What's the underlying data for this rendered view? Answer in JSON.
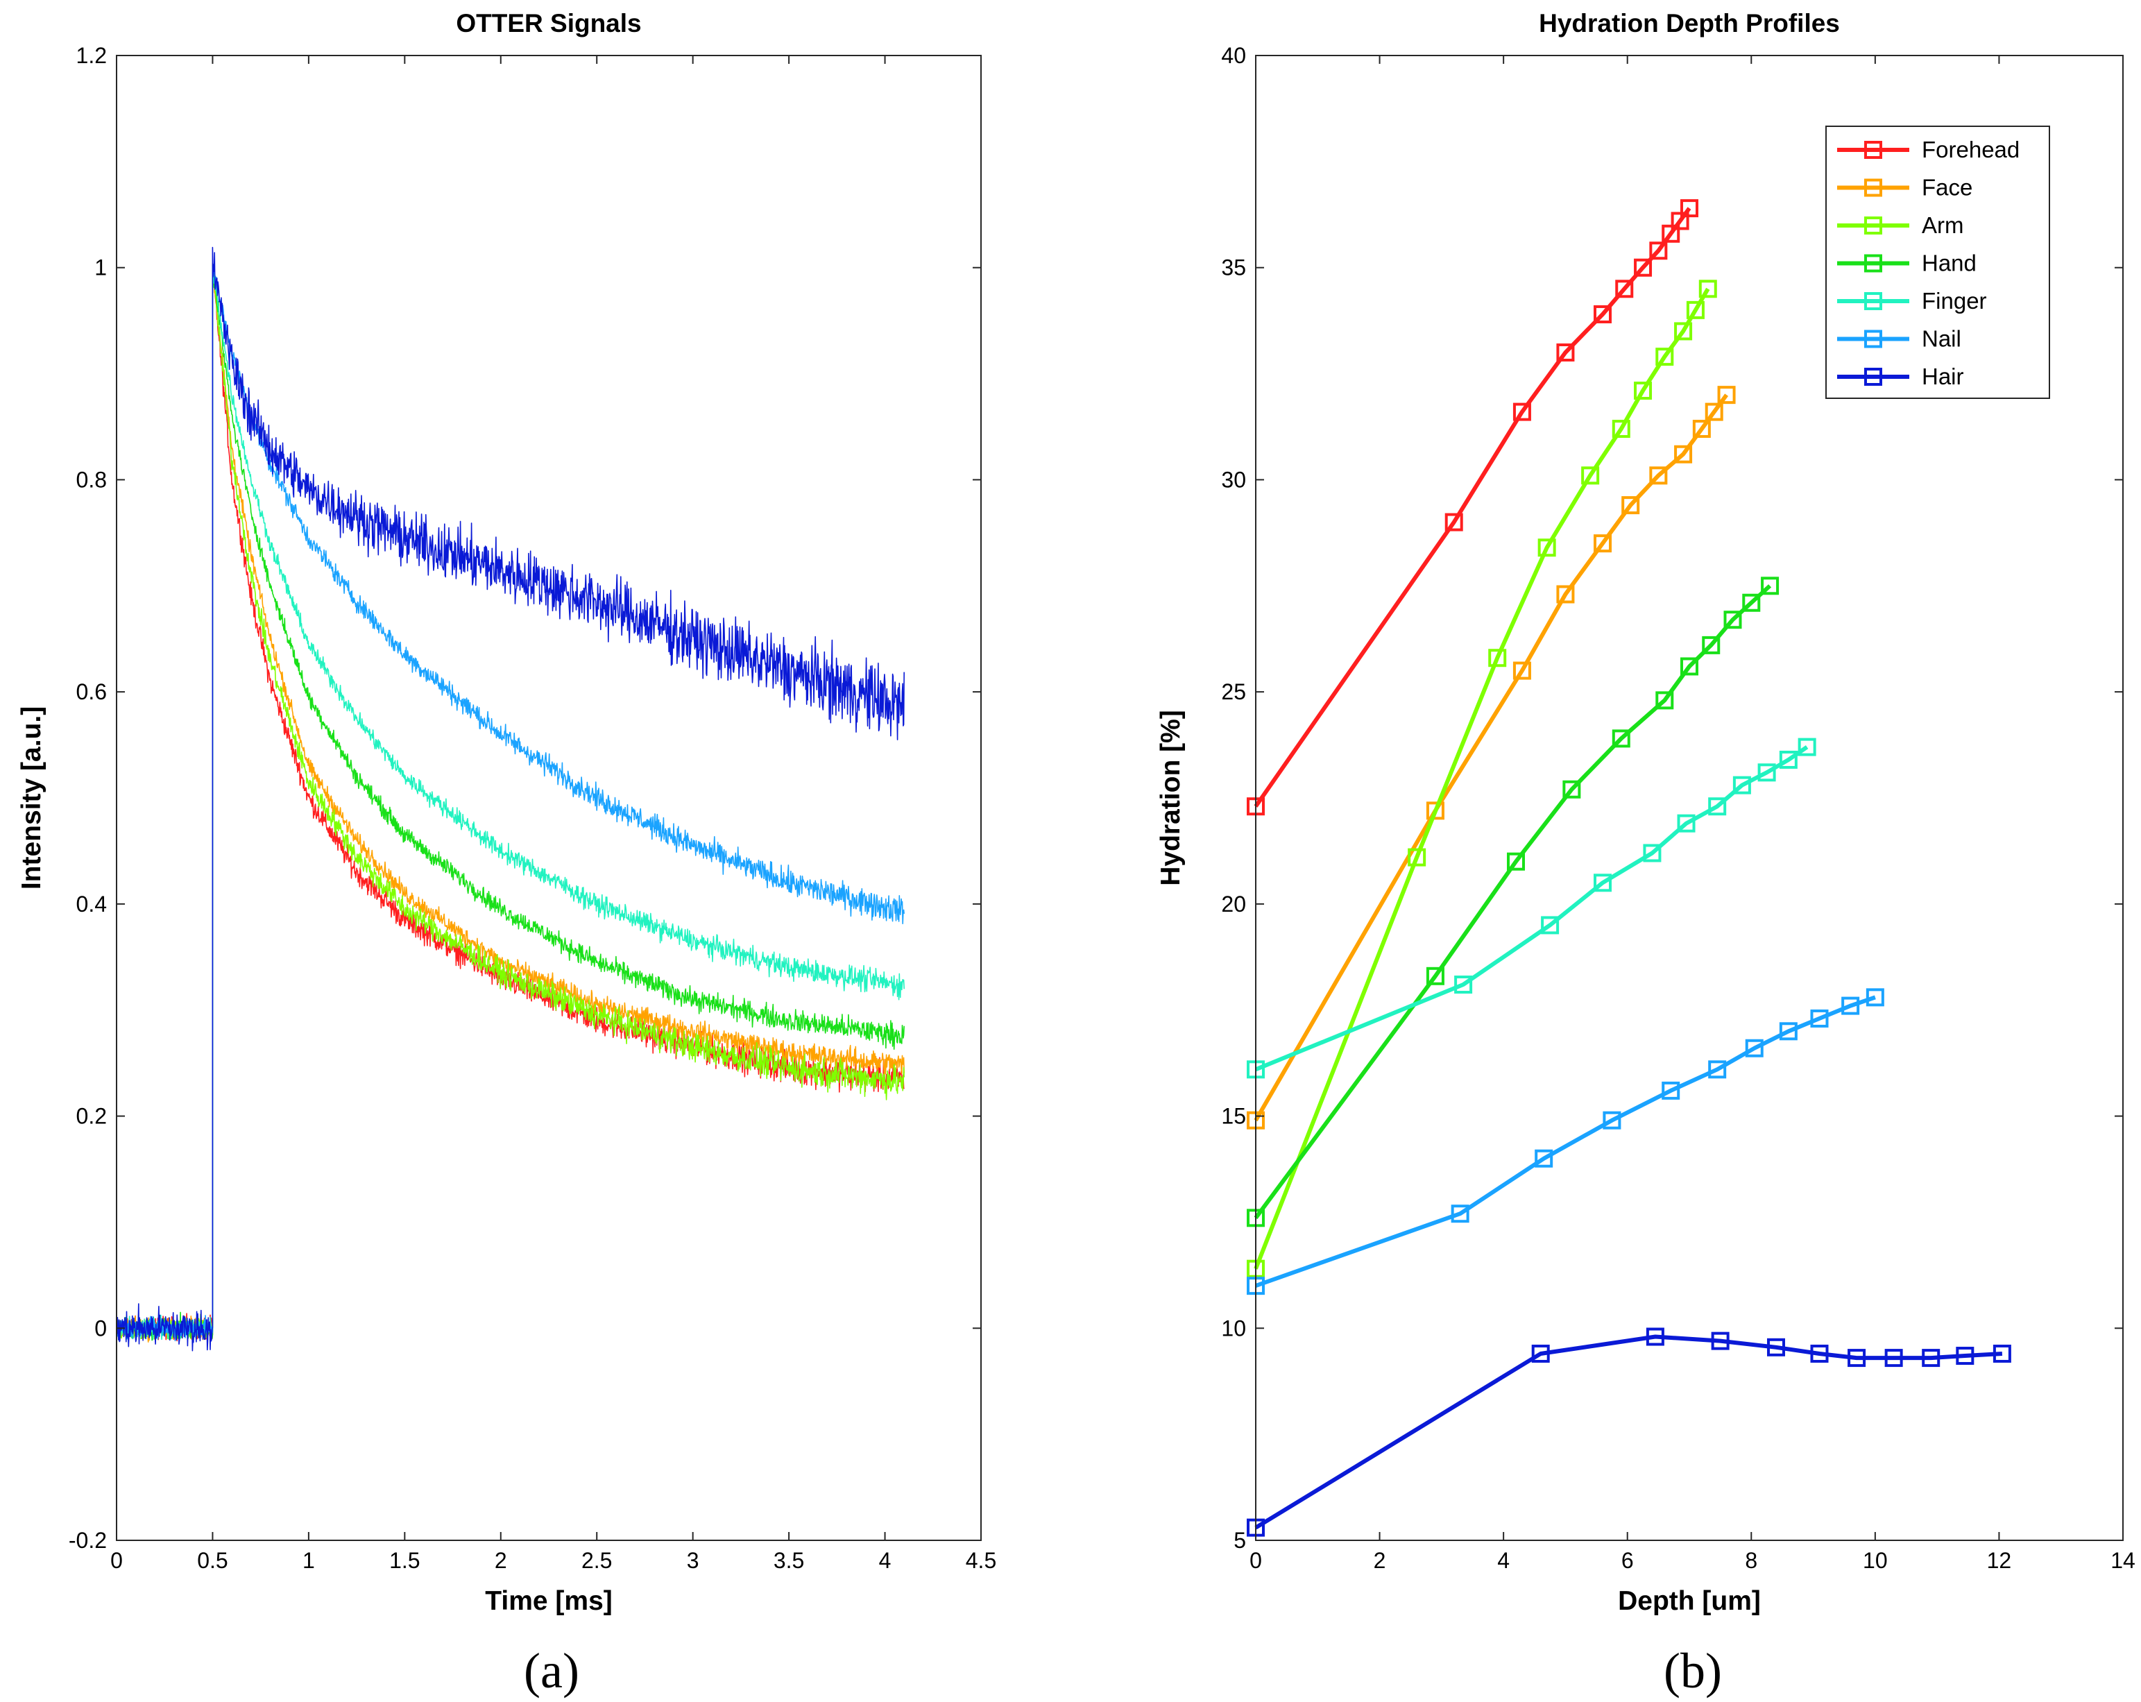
{
  "chart_data": [
    {
      "type": "line",
      "panel_label": "(a)",
      "title": "OTTER Signals",
      "xlabel": "Time [ms]",
      "ylabel": "Intensity [a.u.]",
      "xlim": [
        0,
        4.5
      ],
      "ylim": [
        -0.2,
        1.2
      ],
      "xticks": [
        0,
        0.5,
        1,
        1.5,
        2,
        2.5,
        3,
        3.5,
        4,
        4.5
      ],
      "xtick_labels": [
        "0",
        "0.5",
        "1",
        "1.5",
        "2",
        "2.5",
        "3",
        "3.5",
        "4",
        "4.5"
      ],
      "yticks": [
        -0.2,
        0,
        0.2,
        0.4,
        0.6,
        0.8,
        1,
        1.2
      ],
      "ytick_labels": [
        "-0.2",
        "0",
        "0.2",
        "0.4",
        "0.6",
        "0.8",
        "1",
        "1.2"
      ],
      "grid": false,
      "legend": "none",
      "signal_onset_ms": 0.5,
      "signal_end_ms": 4.1,
      "series": [
        {
          "name": "Forehead",
          "color": "#ff1f1f",
          "x": [
            0.5,
            0.6,
            0.7,
            0.8,
            1.0,
            1.25,
            1.5,
            2.0,
            2.5,
            3.0,
            3.5,
            4.1
          ],
          "y": [
            1.0,
            0.8,
            0.69,
            0.61,
            0.5,
            0.43,
            0.385,
            0.33,
            0.29,
            0.265,
            0.245,
            0.235
          ],
          "noise": 0.008
        },
        {
          "name": "Face",
          "color": "#ffa200",
          "x": [
            0.5,
            0.6,
            0.7,
            0.8,
            1.0,
            1.25,
            1.5,
            2.0,
            2.5,
            3.0,
            3.5,
            4.1
          ],
          "y": [
            1.0,
            0.83,
            0.73,
            0.65,
            0.53,
            0.46,
            0.41,
            0.345,
            0.305,
            0.28,
            0.26,
            0.248
          ],
          "noise": 0.006
        },
        {
          "name": "Arm",
          "color": "#7fff00",
          "x": [
            0.5,
            0.6,
            0.7,
            0.8,
            1.0,
            1.25,
            1.5,
            2.0,
            2.5,
            3.0,
            3.5,
            4.1
          ],
          "y": [
            1.0,
            0.82,
            0.71,
            0.63,
            0.515,
            0.445,
            0.395,
            0.335,
            0.295,
            0.265,
            0.245,
            0.232
          ],
          "noise": 0.008
        },
        {
          "name": "Hand",
          "color": "#19e019",
          "x": [
            0.5,
            0.6,
            0.7,
            0.8,
            1.0,
            1.25,
            1.5,
            2.0,
            2.5,
            3.0,
            3.5,
            4.1
          ],
          "y": [
            1.0,
            0.86,
            0.77,
            0.7,
            0.595,
            0.52,
            0.465,
            0.395,
            0.345,
            0.31,
            0.29,
            0.276
          ],
          "noise": 0.006
        },
        {
          "name": "Finger",
          "color": "#21f2c0",
          "x": [
            0.5,
            0.6,
            0.7,
            0.8,
            1.0,
            1.25,
            1.5,
            2.0,
            2.5,
            3.0,
            3.5,
            4.1
          ],
          "y": [
            1.0,
            0.88,
            0.8,
            0.74,
            0.645,
            0.575,
            0.52,
            0.45,
            0.4,
            0.365,
            0.34,
            0.323
          ],
          "noise": 0.006
        },
        {
          "name": "Nail",
          "color": "#1aa3ff",
          "x": [
            0.5,
            0.6,
            0.7,
            0.8,
            1.0,
            1.25,
            1.5,
            2.0,
            2.5,
            3.0,
            3.5,
            4.1
          ],
          "y": [
            1.0,
            0.92,
            0.86,
            0.815,
            0.745,
            0.685,
            0.635,
            0.56,
            0.5,
            0.455,
            0.42,
            0.393
          ],
          "noise": 0.007
        },
        {
          "name": "Hair",
          "color": "#0a1ad6",
          "x": [
            0.5,
            0.6,
            0.7,
            0.8,
            1.0,
            1.25,
            1.5,
            2.0,
            2.5,
            3.0,
            3.5,
            4.1
          ],
          "y": [
            1.0,
            0.91,
            0.86,
            0.83,
            0.79,
            0.765,
            0.745,
            0.715,
            0.685,
            0.65,
            0.62,
            0.585
          ],
          "noise": 0.018
        }
      ]
    },
    {
      "type": "line",
      "panel_label": "(b)",
      "title": "Hydration Depth Profiles",
      "xlabel": "Depth [um]",
      "ylabel": "Hydration [%]",
      "xlim": [
        0,
        14
      ],
      "ylim": [
        5,
        40
      ],
      "xticks": [
        0,
        2,
        4,
        6,
        8,
        10,
        12,
        14
      ],
      "xtick_labels": [
        "0",
        "2",
        "4",
        "6",
        "8",
        "10",
        "12",
        "14"
      ],
      "yticks": [
        5,
        10,
        15,
        20,
        25,
        30,
        35,
        40
      ],
      "ytick_labels": [
        "5",
        "10",
        "15",
        "20",
        "25",
        "30",
        "35",
        "40"
      ],
      "grid": false,
      "legend": "top-right",
      "marker": "square",
      "series": [
        {
          "name": "Forehead",
          "color": "#ff1f1f",
          "x": [
            0,
            3.2,
            4.3,
            5.0,
            5.6,
            5.95,
            6.25,
            6.5,
            6.7,
            6.85,
            7.0
          ],
          "y": [
            22.3,
            29.0,
            31.6,
            33.0,
            33.9,
            34.5,
            35.0,
            35.4,
            35.8,
            36.1,
            36.4
          ]
        },
        {
          "name": "Face",
          "color": "#ffa200",
          "x": [
            0,
            2.9,
            4.3,
            5.0,
            5.6,
            6.05,
            6.5,
            6.9,
            7.2,
            7.4,
            7.6
          ],
          "y": [
            14.9,
            22.2,
            25.5,
            27.3,
            28.5,
            29.4,
            30.1,
            30.6,
            31.2,
            31.6,
            32.0
          ]
        },
        {
          "name": "Arm",
          "color": "#7fff00",
          "x": [
            0,
            2.6,
            3.9,
            4.7,
            5.4,
            5.9,
            6.25,
            6.6,
            6.9,
            7.1,
            7.3
          ],
          "y": [
            11.4,
            21.1,
            25.8,
            28.4,
            30.1,
            31.2,
            32.1,
            32.9,
            33.5,
            34.0,
            34.5
          ]
        },
        {
          "name": "Hand",
          "color": "#19e019",
          "x": [
            0,
            2.9,
            4.2,
            5.1,
            5.9,
            6.6,
            7.0,
            7.35,
            7.7,
            8.0,
            8.3
          ],
          "y": [
            12.6,
            18.3,
            21.0,
            22.7,
            23.9,
            24.8,
            25.6,
            26.1,
            26.7,
            27.1,
            27.5
          ]
        },
        {
          "name": "Finger",
          "color": "#21f2c0",
          "x": [
            0,
            3.35,
            4.75,
            5.6,
            6.4,
            6.95,
            7.45,
            7.85,
            8.25,
            8.6,
            8.9
          ],
          "y": [
            16.1,
            18.1,
            19.5,
            20.5,
            21.2,
            21.9,
            22.3,
            22.8,
            23.1,
            23.4,
            23.7
          ]
        },
        {
          "name": "Nail",
          "color": "#1aa3ff",
          "x": [
            0,
            3.3,
            4.65,
            5.75,
            6.7,
            7.45,
            8.05,
            8.6,
            9.1,
            9.6,
            10.0
          ],
          "y": [
            11.0,
            12.7,
            14.0,
            14.9,
            15.6,
            16.1,
            16.6,
            17.0,
            17.3,
            17.6,
            17.8
          ]
        },
        {
          "name": "Hair",
          "color": "#0a1ad6",
          "x": [
            0,
            4.6,
            6.45,
            7.5,
            8.4,
            9.1,
            9.7,
            10.3,
            10.9,
            11.45,
            12.05
          ],
          "y": [
            5.3,
            9.4,
            9.8,
            9.7,
            9.55,
            9.4,
            9.3,
            9.3,
            9.3,
            9.35,
            9.4
          ]
        }
      ]
    }
  ]
}
